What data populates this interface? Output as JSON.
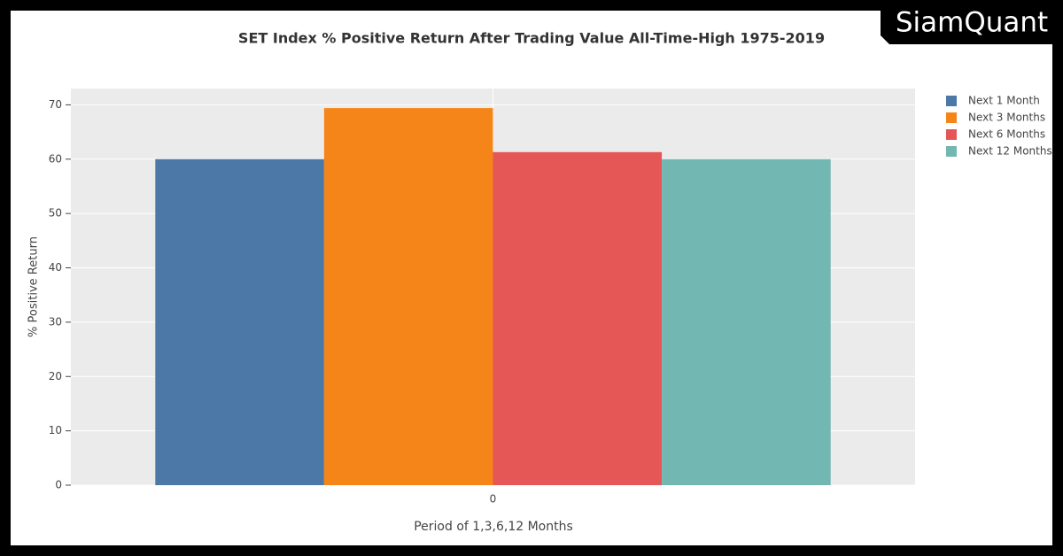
{
  "brand": "SiamQuant",
  "chart_data": {
    "type": "bar",
    "title": "SET Index % Positive Return After Trading Value All-Time-High 1975-2019",
    "x_label": "Period of 1,3,6,12 Months",
    "y_label": "% Positive Return",
    "categories": [
      "0"
    ],
    "series": [
      {
        "name": "Next 1 Month",
        "color": "#4c78a8",
        "values": [
          60
        ]
      },
      {
        "name": "Next 3 Months",
        "color": "#f58518",
        "values": [
          69.4
        ]
      },
      {
        "name": "Next 6 Months",
        "color": "#e45756",
        "values": [
          61.3
        ]
      },
      {
        "name": "Next 12 Months",
        "color": "#72b7b2",
        "values": [
          60
        ]
      }
    ],
    "ylim": [
      0,
      73
    ],
    "yticks": [
      0,
      10,
      20,
      30,
      40,
      50,
      60,
      70
    ],
    "grid": true,
    "legend": "right"
  }
}
